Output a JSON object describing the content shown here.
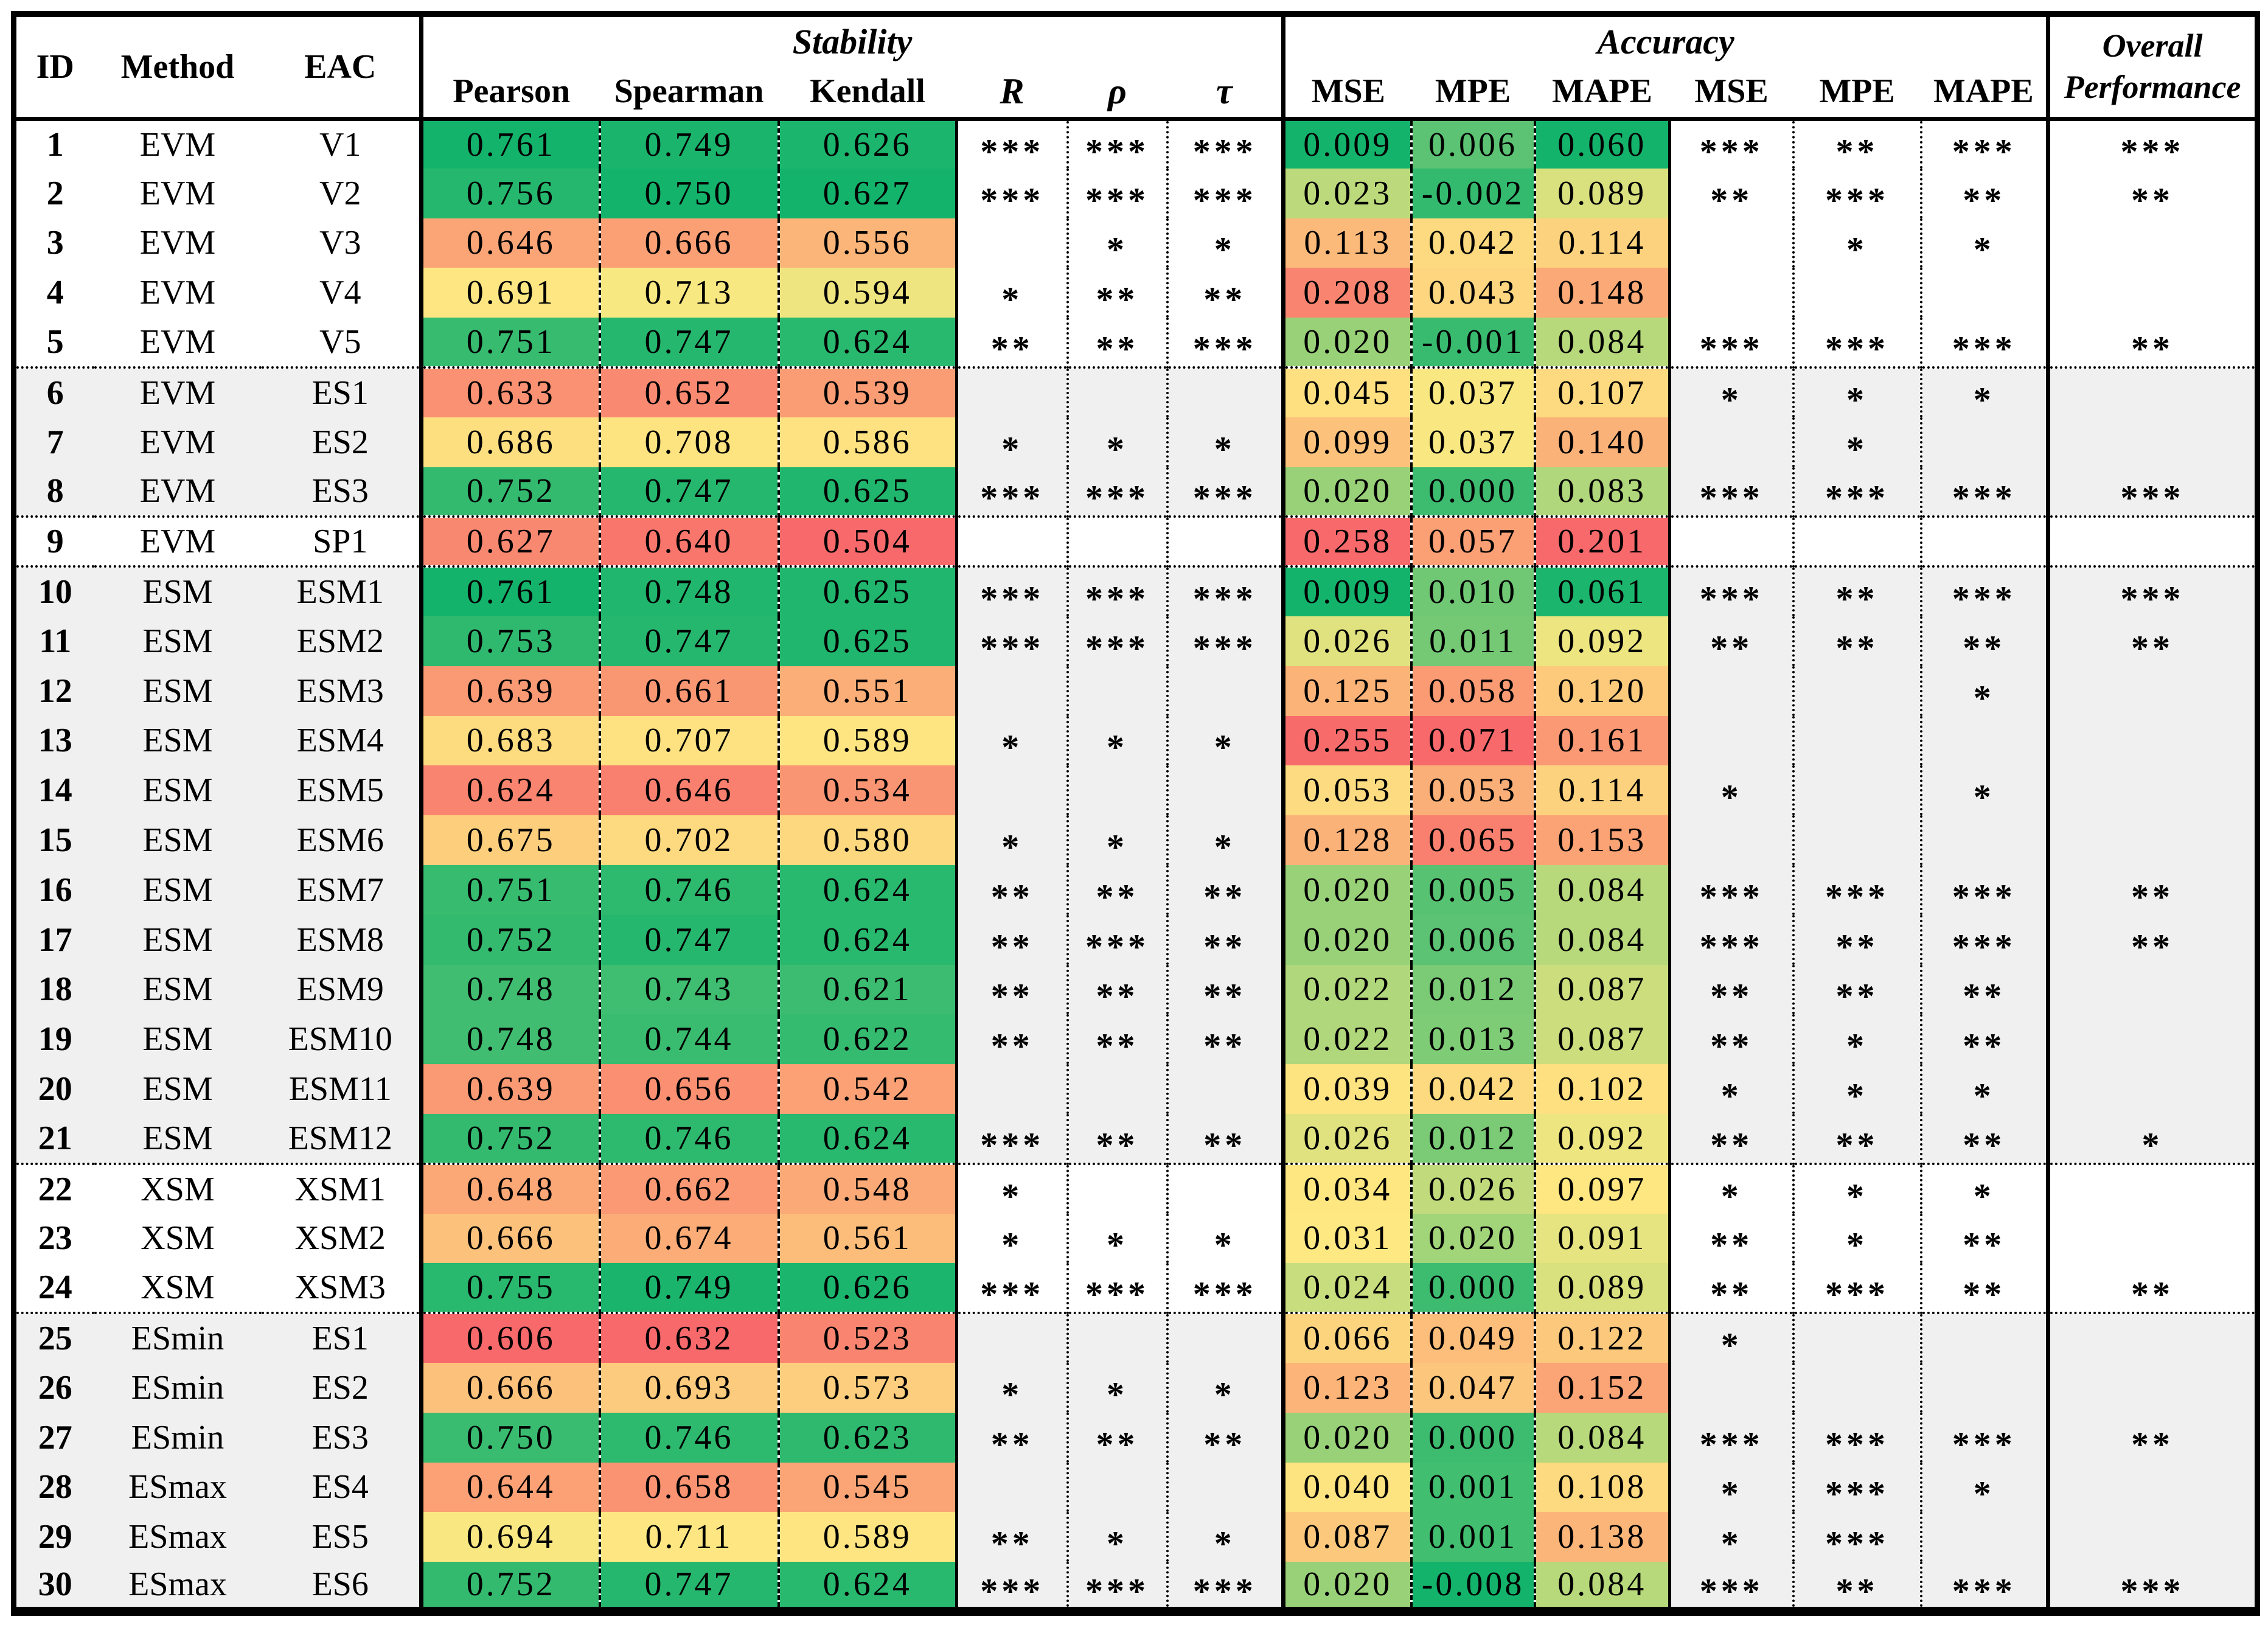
{
  "header": {
    "id": "ID",
    "method": "Method",
    "eac": "EAC",
    "stability": "Stability",
    "accuracy": "Accuracy",
    "overall_line1": "Overall",
    "overall_line2": "Performance",
    "sub_labels": {
      "pearson": "Pearson",
      "spearman": "Spearman",
      "kendall": "Kendall",
      "r": "R",
      "rho": "ρ",
      "tau": "τ",
      "mse1": "MSE",
      "mpe1": "MPE",
      "mape1": "MAPE",
      "mse2": "MSE",
      "mpe2": "MPE",
      "mape2": "MAPE"
    }
  },
  "heatmap": {
    "anchor_colors": {
      "low": "#F8696B",
      "mid": "#FEE982",
      "high": "#14B36C"
    },
    "scales": {
      "pearson": {
        "min": 0.606,
        "mid": 0.6925,
        "max": 0.761,
        "higher_is_better": true
      },
      "spearman": {
        "min": 0.632,
        "mid": 0.712,
        "max": 0.75,
        "higher_is_better": true
      },
      "kendall": {
        "min": 0.504,
        "mid": 0.5915,
        "max": 0.627,
        "higher_is_better": true
      },
      "mse": {
        "min": 0.009,
        "mid": 0.0285,
        "max": 0.258,
        "higher_is_better": false
      },
      "mpe": {
        "min": -0.008,
        "mid": 0.038,
        "max": 0.071,
        "higher_is_better": false
      },
      "mape": {
        "min": 0.06,
        "mid": 0.0945,
        "max": 0.201,
        "higher_is_better": false
      }
    }
  },
  "band_colors": {
    "white": "#FFFFFF",
    "gray": "#F0F0F0"
  },
  "rows": [
    {
      "id": "1",
      "method": "EVM",
      "eac": "V1",
      "pearson": "0.761",
      "spearman": "0.749",
      "kendall": "0.626",
      "r": "***",
      "rho": "***",
      "tau": "***",
      "mse": "0.009",
      "mpe": "0.006",
      "mape": "0.060",
      "mse_sig": "***",
      "mpe_sig": "**",
      "mape_sig": "***",
      "overall": "***",
      "band": "white"
    },
    {
      "id": "2",
      "method": "EVM",
      "eac": "V2",
      "pearson": "0.756",
      "spearman": "0.750",
      "kendall": "0.627",
      "r": "***",
      "rho": "***",
      "tau": "***",
      "mse": "0.023",
      "mpe": "-0.002",
      "mape": "0.089",
      "mse_sig": "**",
      "mpe_sig": "***",
      "mape_sig": "**",
      "overall": "**",
      "band": "white"
    },
    {
      "id": "3",
      "method": "EVM",
      "eac": "V3",
      "pearson": "0.646",
      "spearman": "0.666",
      "kendall": "0.556",
      "r": "",
      "rho": "*",
      "tau": "*",
      "mse": "0.113",
      "mpe": "0.042",
      "mape": "0.114",
      "mse_sig": "",
      "mpe_sig": "*",
      "mape_sig": "*",
      "overall": "",
      "band": "white"
    },
    {
      "id": "4",
      "method": "EVM",
      "eac": "V4",
      "pearson": "0.691",
      "spearman": "0.713",
      "kendall": "0.594",
      "r": "*",
      "rho": "**",
      "tau": "**",
      "mse": "0.208",
      "mpe": "0.043",
      "mape": "0.148",
      "mse_sig": "",
      "mpe_sig": "",
      "mape_sig": "",
      "overall": "",
      "band": "white"
    },
    {
      "id": "5",
      "method": "EVM",
      "eac": "V5",
      "pearson": "0.751",
      "spearman": "0.747",
      "kendall": "0.624",
      "r": "**",
      "rho": "**",
      "tau": "***",
      "mse": "0.020",
      "mpe": "-0.001",
      "mape": "0.084",
      "mse_sig": "***",
      "mpe_sig": "***",
      "mape_sig": "***",
      "overall": "**",
      "band": "white"
    },
    {
      "id": "6",
      "method": "EVM",
      "eac": "ES1",
      "pearson": "0.633",
      "spearman": "0.652",
      "kendall": "0.539",
      "r": "",
      "rho": "",
      "tau": "",
      "mse": "0.045",
      "mpe": "0.037",
      "mape": "0.107",
      "mse_sig": "*",
      "mpe_sig": "*",
      "mape_sig": "*",
      "overall": "",
      "band": "gray"
    },
    {
      "id": "7",
      "method": "EVM",
      "eac": "ES2",
      "pearson": "0.686",
      "spearman": "0.708",
      "kendall": "0.586",
      "r": "*",
      "rho": "*",
      "tau": "*",
      "mse": "0.099",
      "mpe": "0.037",
      "mape": "0.140",
      "mse_sig": "",
      "mpe_sig": "*",
      "mape_sig": "",
      "overall": "",
      "band": "gray"
    },
    {
      "id": "8",
      "method": "EVM",
      "eac": "ES3",
      "pearson": "0.752",
      "spearman": "0.747",
      "kendall": "0.625",
      "r": "***",
      "rho": "***",
      "tau": "***",
      "mse": "0.020",
      "mpe": "0.000",
      "mape": "0.083",
      "mse_sig": "***",
      "mpe_sig": "***",
      "mape_sig": "***",
      "overall": "***",
      "band": "gray"
    },
    {
      "id": "9",
      "method": "EVM",
      "eac": "SP1",
      "pearson": "0.627",
      "spearman": "0.640",
      "kendall": "0.504",
      "r": "",
      "rho": "",
      "tau": "",
      "mse": "0.258",
      "mpe": "0.057",
      "mape": "0.201",
      "mse_sig": "",
      "mpe_sig": "",
      "mape_sig": "",
      "overall": "",
      "band": "white"
    },
    {
      "id": "10",
      "method": "ESM",
      "eac": "ESM1",
      "pearson": "0.761",
      "spearman": "0.748",
      "kendall": "0.625",
      "r": "***",
      "rho": "***",
      "tau": "***",
      "mse": "0.009",
      "mpe": "0.010",
      "mape": "0.061",
      "mse_sig": "***",
      "mpe_sig": "**",
      "mape_sig": "***",
      "overall": "***",
      "band": "gray"
    },
    {
      "id": "11",
      "method": "ESM",
      "eac": "ESM2",
      "pearson": "0.753",
      "spearman": "0.747",
      "kendall": "0.625",
      "r": "***",
      "rho": "***",
      "tau": "***",
      "mse": "0.026",
      "mpe": "0.011",
      "mape": "0.092",
      "mse_sig": "**",
      "mpe_sig": "**",
      "mape_sig": "**",
      "overall": "**",
      "band": "gray"
    },
    {
      "id": "12",
      "method": "ESM",
      "eac": "ESM3",
      "pearson": "0.639",
      "spearman": "0.661",
      "kendall": "0.551",
      "r": "",
      "rho": "",
      "tau": "",
      "mse": "0.125",
      "mpe": "0.058",
      "mape": "0.120",
      "mse_sig": "",
      "mpe_sig": "",
      "mape_sig": "*",
      "overall": "",
      "band": "gray"
    },
    {
      "id": "13",
      "method": "ESM",
      "eac": "ESM4",
      "pearson": "0.683",
      "spearman": "0.707",
      "kendall": "0.589",
      "r": "*",
      "rho": "*",
      "tau": "*",
      "mse": "0.255",
      "mpe": "0.071",
      "mape": "0.161",
      "mse_sig": "",
      "mpe_sig": "",
      "mape_sig": "",
      "overall": "",
      "band": "gray"
    },
    {
      "id": "14",
      "method": "ESM",
      "eac": "ESM5",
      "pearson": "0.624",
      "spearman": "0.646",
      "kendall": "0.534",
      "r": "",
      "rho": "",
      "tau": "",
      "mse": "0.053",
      "mpe": "0.053",
      "mape": "0.114",
      "mse_sig": "*",
      "mpe_sig": "",
      "mape_sig": "*",
      "overall": "",
      "band": "gray"
    },
    {
      "id": "15",
      "method": "ESM",
      "eac": "ESM6",
      "pearson": "0.675",
      "spearman": "0.702",
      "kendall": "0.580",
      "r": "*",
      "rho": "*",
      "tau": "*",
      "mse": "0.128",
      "mpe": "0.065",
      "mape": "0.153",
      "mse_sig": "",
      "mpe_sig": "",
      "mape_sig": "",
      "overall": "",
      "band": "gray"
    },
    {
      "id": "16",
      "method": "ESM",
      "eac": "ESM7",
      "pearson": "0.751",
      "spearman": "0.746",
      "kendall": "0.624",
      "r": "**",
      "rho": "**",
      "tau": "**",
      "mse": "0.020",
      "mpe": "0.005",
      "mape": "0.084",
      "mse_sig": "***",
      "mpe_sig": "***",
      "mape_sig": "***",
      "overall": "**",
      "band": "gray"
    },
    {
      "id": "17",
      "method": "ESM",
      "eac": "ESM8",
      "pearson": "0.752",
      "spearman": "0.747",
      "kendall": "0.624",
      "r": "**",
      "rho": "***",
      "tau": "**",
      "mse": "0.020",
      "mpe": "0.006",
      "mape": "0.084",
      "mse_sig": "***",
      "mpe_sig": "**",
      "mape_sig": "***",
      "overall": "**",
      "band": "gray"
    },
    {
      "id": "18",
      "method": "ESM",
      "eac": "ESM9",
      "pearson": "0.748",
      "spearman": "0.743",
      "kendall": "0.621",
      "r": "**",
      "rho": "**",
      "tau": "**",
      "mse": "0.022",
      "mpe": "0.012",
      "mape": "0.087",
      "mse_sig": "**",
      "mpe_sig": "**",
      "mape_sig": "**",
      "overall": "",
      "band": "gray"
    },
    {
      "id": "19",
      "method": "ESM",
      "eac": "ESM10",
      "pearson": "0.748",
      "spearman": "0.744",
      "kendall": "0.622",
      "r": "**",
      "rho": "**",
      "tau": "**",
      "mse": "0.022",
      "mpe": "0.013",
      "mape": "0.087",
      "mse_sig": "**",
      "mpe_sig": "*",
      "mape_sig": "**",
      "overall": "",
      "band": "gray"
    },
    {
      "id": "20",
      "method": "ESM",
      "eac": "ESM11",
      "pearson": "0.639",
      "spearman": "0.656",
      "kendall": "0.542",
      "r": "",
      "rho": "",
      "tau": "",
      "mse": "0.039",
      "mpe": "0.042",
      "mape": "0.102",
      "mse_sig": "*",
      "mpe_sig": "*",
      "mape_sig": "*",
      "overall": "",
      "band": "gray"
    },
    {
      "id": "21",
      "method": "ESM",
      "eac": "ESM12",
      "pearson": "0.752",
      "spearman": "0.746",
      "kendall": "0.624",
      "r": "***",
      "rho": "**",
      "tau": "**",
      "mse": "0.026",
      "mpe": "0.012",
      "mape": "0.092",
      "mse_sig": "**",
      "mpe_sig": "**",
      "mape_sig": "**",
      "overall": "*",
      "band": "gray"
    },
    {
      "id": "22",
      "method": "XSM",
      "eac": "XSM1",
      "pearson": "0.648",
      "spearman": "0.662",
      "kendall": "0.548",
      "r": "*",
      "rho": "",
      "tau": "",
      "mse": "0.034",
      "mpe": "0.026",
      "mape": "0.097",
      "mse_sig": "*",
      "mpe_sig": "*",
      "mape_sig": "*",
      "overall": "",
      "band": "white"
    },
    {
      "id": "23",
      "method": "XSM",
      "eac": "XSM2",
      "pearson": "0.666",
      "spearman": "0.674",
      "kendall": "0.561",
      "r": "*",
      "rho": "*",
      "tau": "*",
      "mse": "0.031",
      "mpe": "0.020",
      "mape": "0.091",
      "mse_sig": "**",
      "mpe_sig": "*",
      "mape_sig": "**",
      "overall": "",
      "band": "white"
    },
    {
      "id": "24",
      "method": "XSM",
      "eac": "XSM3",
      "pearson": "0.755",
      "spearman": "0.749",
      "kendall": "0.626",
      "r": "***",
      "rho": "***",
      "tau": "***",
      "mse": "0.024",
      "mpe": "0.000",
      "mape": "0.089",
      "mse_sig": "**",
      "mpe_sig": "***",
      "mape_sig": "**",
      "overall": "**",
      "band": "white"
    },
    {
      "id": "25",
      "method": "ESmin",
      "eac": "ES1",
      "pearson": "0.606",
      "spearman": "0.632",
      "kendall": "0.523",
      "r": "",
      "rho": "",
      "tau": "",
      "mse": "0.066",
      "mpe": "0.049",
      "mape": "0.122",
      "mse_sig": "*",
      "mpe_sig": "",
      "mape_sig": "",
      "overall": "",
      "band": "gray"
    },
    {
      "id": "26",
      "method": "ESmin",
      "eac": "ES2",
      "pearson": "0.666",
      "spearman": "0.693",
      "kendall": "0.573",
      "r": "*",
      "rho": "*",
      "tau": "*",
      "mse": "0.123",
      "mpe": "0.047",
      "mape": "0.152",
      "mse_sig": "",
      "mpe_sig": "",
      "mape_sig": "",
      "overall": "",
      "band": "gray"
    },
    {
      "id": "27",
      "method": "ESmin",
      "eac": "ES3",
      "pearson": "0.750",
      "spearman": "0.746",
      "kendall": "0.623",
      "r": "**",
      "rho": "**",
      "tau": "**",
      "mse": "0.020",
      "mpe": "0.000",
      "mape": "0.084",
      "mse_sig": "***",
      "mpe_sig": "***",
      "mape_sig": "***",
      "overall": "**",
      "band": "gray"
    },
    {
      "id": "28",
      "method": "ESmax",
      "eac": "ES4",
      "pearson": "0.644",
      "spearman": "0.658",
      "kendall": "0.545",
      "r": "",
      "rho": "",
      "tau": "",
      "mse": "0.040",
      "mpe": "0.001",
      "mape": "0.108",
      "mse_sig": "*",
      "mpe_sig": "***",
      "mape_sig": "*",
      "overall": "",
      "band": "gray"
    },
    {
      "id": "29",
      "method": "ESmax",
      "eac": "ES5",
      "pearson": "0.694",
      "spearman": "0.711",
      "kendall": "0.589",
      "r": "**",
      "rho": "*",
      "tau": "*",
      "mse": "0.087",
      "mpe": "0.001",
      "mape": "0.138",
      "mse_sig": "*",
      "mpe_sig": "***",
      "mape_sig": "",
      "overall": "",
      "band": "gray"
    },
    {
      "id": "30",
      "method": "ESmax",
      "eac": "ES6",
      "pearson": "0.752",
      "spearman": "0.747",
      "kendall": "0.624",
      "r": "***",
      "rho": "***",
      "tau": "***",
      "mse": "0.020",
      "mpe": "-0.008",
      "mape": "0.084",
      "mse_sig": "***",
      "mpe_sig": "**",
      "mape_sig": "***",
      "overall": "***",
      "band": "gray"
    }
  ]
}
